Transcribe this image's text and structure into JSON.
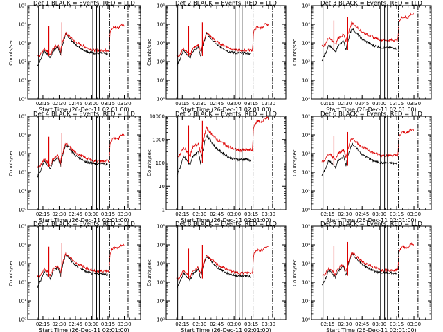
{
  "figure": {
    "background": "#ffffff"
  },
  "colors": {
    "events": "#000000",
    "lld": "#dd0000",
    "axes": "#000000"
  },
  "chart_data": [
    {
      "type": "line",
      "title": "Det 1 BLACK = Events, RED = LLD",
      "xlabel": "Start Time (26-Dec-11 02:01:00)",
      "ylabel": "Counts/sec",
      "yscale": "log",
      "ylim": [
        1,
        100000
      ],
      "yticks": [
        "10⁰",
        "10¹",
        "10²",
        "10³",
        "10⁴",
        "10⁵"
      ],
      "xticks": [
        "02:15",
        "02:30",
        "02:45",
        "03:00",
        "03:15",
        "03:30"
      ],
      "series": [
        {
          "name": "Events",
          "color": "#000000"
        },
        {
          "name": "LLD",
          "color": "#dd0000"
        }
      ]
    },
    {
      "type": "line",
      "title": "Det 2 BLACK = Events, RED = LLD",
      "xlabel": "Start Time (26-Dec-11 02:01:00)",
      "ylabel": "Counts/sec",
      "yscale": "log",
      "ylim": [
        1,
        100000
      ],
      "yticks": [
        "10⁰",
        "10¹",
        "10²",
        "10³",
        "10⁴",
        "10⁵"
      ],
      "xticks": [
        "02:15",
        "02:30",
        "02:45",
        "03:00",
        "03:15",
        "03:30"
      ],
      "series": [
        {
          "name": "Events",
          "color": "#000000"
        },
        {
          "name": "LLD",
          "color": "#dd0000"
        }
      ]
    },
    {
      "type": "line",
      "title": "Det 3 BLACK = Events, RED = LLD",
      "xlabel": "Start Time (26-Dec-11 02:01:00)",
      "ylabel": "Counts/sec",
      "yscale": "log",
      "ylim": [
        1,
        100000
      ],
      "yticks": [
        "10⁰",
        "10¹",
        "10²",
        "10³",
        "10⁴",
        "10⁵"
      ],
      "xticks": [
        "02:15",
        "02:30",
        "02:45",
        "03:00",
        "03:15",
        "03:30"
      ],
      "series": [
        {
          "name": "Events",
          "color": "#000000"
        },
        {
          "name": "LLD",
          "color": "#dd0000"
        }
      ]
    },
    {
      "type": "line",
      "title": "Det 4 BLACK = Events, RED = LLD",
      "xlabel": "Start Time (26-Dec-11 02:01:00)",
      "ylabel": "Counts/sec",
      "yscale": "log",
      "ylim": [
        1,
        100000
      ],
      "yticks": [
        "10⁰",
        "10¹",
        "10²",
        "10³",
        "10⁴",
        "10⁵"
      ],
      "xticks": [
        "02:15",
        "02:30",
        "02:45",
        "03:00",
        "03:15",
        "03:30"
      ],
      "series": [
        {
          "name": "Events",
          "color": "#000000"
        },
        {
          "name": "LLD",
          "color": "#dd0000"
        }
      ]
    },
    {
      "type": "line",
      "title": "Det 5 BLACK = Events, RED = LLD",
      "xlabel": "Start Time (26-Dec-11 02:01:00)",
      "ylabel": "Counts/sec",
      "yscale": "log",
      "ylim": [
        1,
        10000
      ],
      "yticks": [
        "1",
        "10",
        "100",
        "1000",
        "10000"
      ],
      "xticks": [
        "02:15",
        "02:30",
        "02:45",
        "03:00",
        "03:15",
        "03:30"
      ],
      "series": [
        {
          "name": "Events",
          "color": "#000000"
        },
        {
          "name": "LLD",
          "color": "#dd0000"
        }
      ]
    },
    {
      "type": "line",
      "title": "Det 6 BLACK = Events, RED = LLD",
      "xlabel": "Start Time (26-Dec-11 02:01:00)",
      "ylabel": "Counts/sec",
      "yscale": "log",
      "ylim": [
        1,
        100000
      ],
      "yticks": [
        "10⁰",
        "10¹",
        "10²",
        "10³",
        "10⁴",
        "10⁵"
      ],
      "xticks": [
        "02:15",
        "02:30",
        "02:45",
        "03:00",
        "03:15",
        "03:30"
      ],
      "series": [
        {
          "name": "Events",
          "color": "#000000"
        },
        {
          "name": "LLD",
          "color": "#dd0000"
        }
      ]
    },
    {
      "type": "line",
      "title": "Det 7 BLACK = Events, RED = LLD",
      "xlabel": "Start Time (26-Dec-11 02:01:00)",
      "ylabel": "Counts/sec",
      "yscale": "log",
      "ylim": [
        1,
        100000
      ],
      "yticks": [
        "10⁰",
        "10¹",
        "10²",
        "10³",
        "10⁴",
        "10⁵"
      ],
      "xticks": [
        "02:15",
        "02:30",
        "02:45",
        "03:00",
        "03:15",
        "03:30"
      ],
      "series": [
        {
          "name": "Events",
          "color": "#000000"
        },
        {
          "name": "LLD",
          "color": "#dd0000"
        }
      ]
    },
    {
      "type": "line",
      "title": "Det 8 BLACK = Events, RED = LLD",
      "xlabel": "Start Time (26-Dec-11 02:01:00)",
      "ylabel": "Counts/sec",
      "yscale": "log",
      "ylim": [
        1,
        100000
      ],
      "yticks": [
        "10⁰",
        "10¹",
        "10²",
        "10³",
        "10⁴",
        "10⁵"
      ],
      "xticks": [
        "02:15",
        "02:30",
        "02:45",
        "03:00",
        "03:15",
        "03:30"
      ],
      "series": [
        {
          "name": "Events",
          "color": "#000000"
        },
        {
          "name": "LLD",
          "color": "#dd0000"
        }
      ]
    },
    {
      "type": "line",
      "title": "Det 9 BLACK = Events, RED = LLD",
      "xlabel": "Start Time (26-Dec-11 02:01:00)",
      "ylabel": "Counts/sec",
      "yscale": "log",
      "ylim": [
        1,
        100000
      ],
      "yticks": [
        "10⁰",
        "10¹",
        "10²",
        "10³",
        "10⁴",
        "10⁵"
      ],
      "xticks": [
        "02:15",
        "02:30",
        "02:45",
        "03:00",
        "03:15",
        "03:30"
      ],
      "series": [
        {
          "name": "Events",
          "color": "#000000"
        },
        {
          "name": "LLD",
          "color": "#dd0000"
        }
      ]
    }
  ]
}
